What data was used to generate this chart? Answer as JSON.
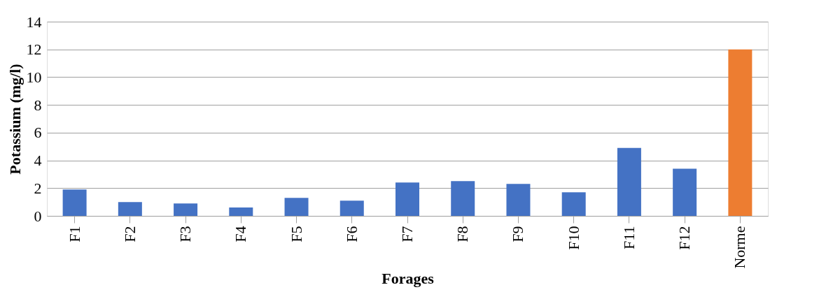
{
  "chart_data": {
    "type": "bar",
    "xlabel": "Forages",
    "ylabel": "Potassium (mg/l)",
    "categories": [
      "F1",
      "F2",
      "F3",
      "F4",
      "F5",
      "F6",
      "F7",
      "F8",
      "F9",
      "F10",
      "F11",
      "F12",
      "Norme"
    ],
    "values": [
      1.9,
      1.0,
      0.9,
      0.6,
      1.3,
      1.1,
      2.4,
      2.5,
      2.3,
      1.7,
      4.9,
      3.4,
      12
    ],
    "colors": [
      "#4472c4",
      "#4472c4",
      "#4472c4",
      "#4472c4",
      "#4472c4",
      "#4472c4",
      "#4472c4",
      "#4472c4",
      "#4472c4",
      "#4472c4",
      "#4472c4",
      "#4472c4",
      "#ed7d31"
    ],
    "ylim": [
      0,
      14
    ],
    "yticks": [
      0,
      2,
      4,
      6,
      8,
      10,
      12,
      14
    ],
    "grid": "y"
  }
}
